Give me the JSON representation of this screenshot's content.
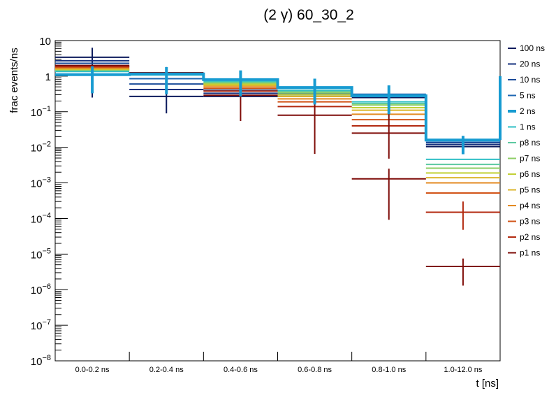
{
  "chart_data": {
    "type": "line",
    "title": "(2 γ) 60_30_2",
    "xlabel": "t [ns]",
    "ylabel": "frac events/ns",
    "yscale": "log",
    "ylim": [
      1e-08,
      10
    ],
    "grid": false,
    "legend_position": "right",
    "categories": [
      "0.0-0.2 ns",
      "0.2-0.4 ns",
      "0.4-0.6 ns",
      "0.6-0.8 ns",
      "0.8-1.0 ns",
      "1.0-12.0 ns"
    ],
    "ytick_labels": [
      {
        "base": "10",
        "exp": "",
        "value": 10
      },
      {
        "base": "1",
        "exp": "",
        "value": 1
      },
      {
        "base": "10",
        "exp": "−1",
        "value": 0.1
      },
      {
        "base": "10",
        "exp": "−2",
        "value": 0.01
      },
      {
        "base": "10",
        "exp": "−3",
        "value": 0.001
      },
      {
        "base": "10",
        "exp": "−4",
        "value": 0.0001
      },
      {
        "base": "10",
        "exp": "−5",
        "value": 1e-05
      },
      {
        "base": "10",
        "exp": "−6",
        "value": 1e-06
      },
      {
        "base": "10",
        "exp": "−7",
        "value": 1e-07
      },
      {
        "base": "10",
        "exp": "−8",
        "value": 1e-08
      }
    ],
    "series": [
      {
        "name": "100 ns",
        "color": "#0b1a5c",
        "values": [
          3.4,
          0.27,
          0.27,
          0.27,
          0.25,
          0.0105
        ],
        "errors": [
          {
            "bin": 0,
            "lo": 0.25,
            "hi": 6.3
          },
          {
            "bin": 1,
            "lo": 0.09,
            "hi": 1.8
          }
        ]
      },
      {
        "name": "20 ns",
        "color": "#16307e",
        "values": [
          2.7,
          0.42,
          0.33,
          0.3,
          0.27,
          0.012
        ]
      },
      {
        "name": "10 ns",
        "color": "#1a4b99",
        "values": [
          2.3,
          0.6,
          0.4,
          0.33,
          0.29,
          0.0135
        ]
      },
      {
        "name": "5 ns",
        "color": "#1d66b2",
        "values": [
          1.9,
          0.85,
          0.6,
          0.4,
          0.31,
          0.015
        ]
      },
      {
        "name": "2 ns",
        "color": "#179bd1",
        "thick": true,
        "values": [
          1.1,
          1.15,
          0.8,
          0.48,
          0.28,
          0.016
        ],
        "errors": [
          {
            "bin": 0,
            "lo": 0.33,
            "hi": 1.9
          },
          {
            "bin": 1,
            "lo": 0.31,
            "hi": 1.8
          },
          {
            "bin": 2,
            "lo": 0.27,
            "hi": 1.45
          },
          {
            "bin": 3,
            "lo": 0.16,
            "hi": 0.85
          },
          {
            "bin": 4,
            "lo": 0.085,
            "hi": 0.55
          },
          {
            "bin": 5,
            "lo": 0.0064,
            "hi": 0.021
          }
        ]
      },
      {
        "name": "1 ns",
        "color": "#2fbfc6",
        "values": [
          1.35,
          1.08,
          0.7,
          0.4,
          0.19,
          0.0046
        ]
      },
      {
        "name": "p8 ns",
        "color": "#5cc9a0",
        "values": [
          1.45,
          1.1,
          0.67,
          0.37,
          0.17,
          0.0033
        ]
      },
      {
        "name": "p7 ns",
        "color": "#8dce66",
        "values": [
          1.5,
          1.12,
          0.63,
          0.34,
          0.155,
          0.0026
        ]
      },
      {
        "name": "p6 ns",
        "color": "#c2d036",
        "values": [
          1.55,
          1.14,
          0.59,
          0.3,
          0.13,
          0.0019
        ]
      },
      {
        "name": "p5 ns",
        "color": "#dcb62c",
        "values": [
          1.6,
          1.16,
          0.55,
          0.27,
          0.11,
          0.0014
        ]
      },
      {
        "name": "p4 ns",
        "color": "#e38a21",
        "values": [
          1.68,
          1.18,
          0.5,
          0.23,
          0.085,
          0.001
        ]
      },
      {
        "name": "p3 ns",
        "color": "#d25418",
        "values": [
          1.78,
          1.2,
          0.45,
          0.19,
          0.06,
          0.00052
        ]
      },
      {
        "name": "p2 ns",
        "color": "#b32a10",
        "values": [
          1.9,
          1.22,
          0.38,
          0.14,
          0.04,
          0.00015
        ]
      },
      {
        "name": "p1 ns",
        "color": "#7f0c08",
        "values": [
          2.0,
          1.25,
          0.29,
          0.08,
          0.025,
          4.5e-06
        ],
        "errors": [
          {
            "bin": 2,
            "lo": 0.055,
            "hi": 0.7
          },
          {
            "bin": 3,
            "lo": 0.0065,
            "hi": 0.25
          },
          {
            "bin": 4,
            "lo": 0.0048,
            "hi": 0.09
          },
          {
            "bin": 5,
            "lo": 1.3e-06,
            "hi": 7.5e-06
          }
        ]
      },
      {
        "name": "",
        "color": "#7f0c08",
        "inLegend": false,
        "values": [
          null,
          null,
          null,
          null,
          0.0013,
          null
        ],
        "errors": [
          {
            "bin": 4,
            "lo": 9.2e-05,
            "hi": 0.0025
          }
        ]
      },
      {
        "name": "",
        "color": "#b32a10",
        "inLegend": false,
        "values": [
          null,
          null,
          null,
          null,
          null,
          0.00015
        ],
        "errors": [
          {
            "bin": 5,
            "lo": 4.8e-05,
            "hi": 0.0003
          }
        ]
      }
    ]
  }
}
